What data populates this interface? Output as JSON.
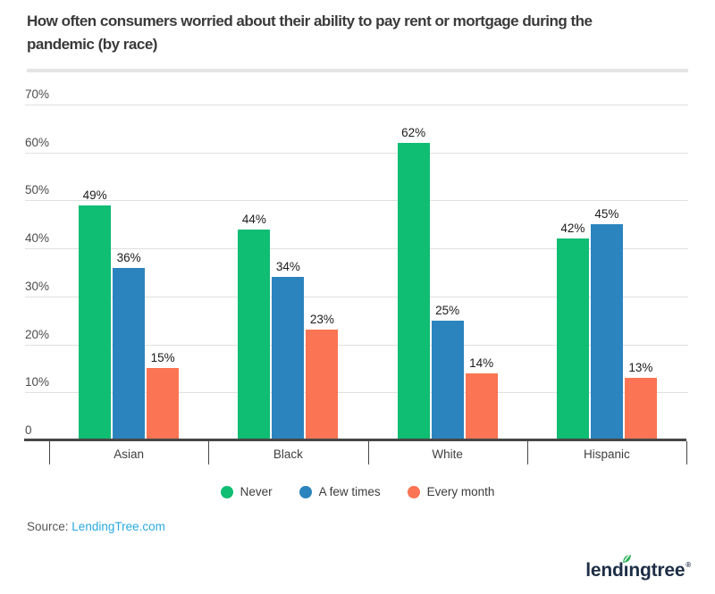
{
  "header": {
    "title": "How often consumers worried about their ability to pay rent or mortgage during the pandemic (by race)"
  },
  "chart_data": {
    "type": "bar",
    "title": "How often consumers worried about their ability to pay rent or mortgage during the pandemic (by race)",
    "categories": [
      "Asian",
      "Black",
      "White",
      "Hispanic"
    ],
    "series": [
      {
        "name": "Never",
        "color": "#0fbd73",
        "values": [
          49,
          44,
          62,
          42
        ]
      },
      {
        "name": "A few times",
        "color": "#2b84be",
        "values": [
          36,
          34,
          25,
          45
        ]
      },
      {
        "name": "Every month",
        "color": "#fb7453",
        "values": [
          15,
          23,
          14,
          13
        ]
      }
    ],
    "value_suffix": "%",
    "ylim": [
      0,
      70
    ],
    "y_ticks": [
      {
        "label": "70%",
        "value": 70
      },
      {
        "label": "60%",
        "value": 60
      },
      {
        "label": "50%",
        "value": 50
      },
      {
        "label": "40%",
        "value": 40
      },
      {
        "label": "30%",
        "value": 30
      },
      {
        "label": "20%",
        "value": 20
      },
      {
        "label": "10%",
        "value": 10
      },
      {
        "label": "0",
        "value": 0
      }
    ],
    "grid": true,
    "legend_position": "bottom"
  },
  "footer": {
    "source_label": "Source:",
    "source_link": "LendingTree.com",
    "logo": {
      "text": "lendingtree",
      "text_before_leaf": "lend",
      "leaf_letter": "ı",
      "text_after_leaf": "ngtree",
      "registered": "®",
      "leaf_icon": "leaf-icon"
    }
  },
  "colors": {
    "link_blue": "#29a9e0",
    "logo_navy": "#1d2e45",
    "leaf_green": "#2bb25a",
    "axis": "#474747",
    "gridline": "#e0e0e0"
  }
}
